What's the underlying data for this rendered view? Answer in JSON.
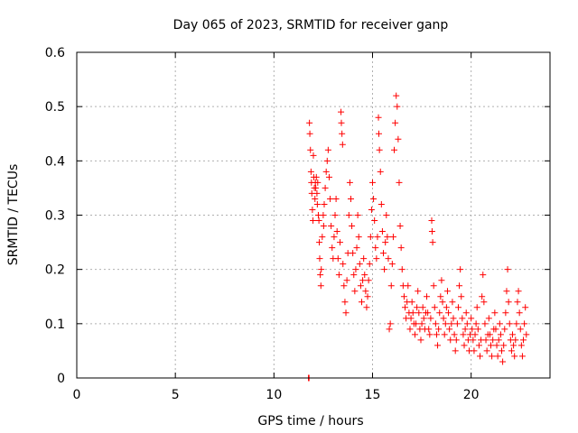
{
  "chart_data": {
    "type": "scatter",
    "title": "Day 065 of 2023, SRMTID for receiver ganp",
    "xlabel": "GPS time / hours",
    "ylabel": "SRMTID / TECUs",
    "xlim": [
      0,
      24
    ],
    "ylim": [
      0,
      0.6
    ],
    "xticks": [
      0,
      5,
      10,
      15,
      20
    ],
    "yticks": [
      0,
      0.1,
      0.2,
      0.3,
      0.4,
      0.5,
      0.6
    ],
    "grid": true,
    "marker": "+",
    "series": [
      {
        "name": "SRMTID",
        "color": "#ff0000",
        "points": [
          [
            11.75,
            0.0
          ],
          [
            11.78,
            0.0
          ],
          [
            11.8,
            0.47
          ],
          [
            11.82,
            0.45
          ],
          [
            11.85,
            0.42
          ],
          [
            11.88,
            0.38
          ],
          [
            11.9,
            0.36
          ],
          [
            11.92,
            0.34
          ],
          [
            11.95,
            0.31
          ],
          [
            11.98,
            0.29
          ],
          [
            12.0,
            0.41
          ],
          [
            12.02,
            0.37
          ],
          [
            12.05,
            0.35
          ],
          [
            12.08,
            0.33
          ],
          [
            12.1,
            0.36
          ],
          [
            12.12,
            0.35
          ],
          [
            12.15,
            0.37
          ],
          [
            12.18,
            0.34
          ],
          [
            12.2,
            0.32
          ],
          [
            12.22,
            0.36
          ],
          [
            12.25,
            0.3
          ],
          [
            12.28,
            0.29
          ],
          [
            12.3,
            0.25
          ],
          [
            12.32,
            0.22
          ],
          [
            12.35,
            0.19
          ],
          [
            12.38,
            0.17
          ],
          [
            12.4,
            0.2
          ],
          [
            12.45,
            0.26
          ],
          [
            12.5,
            0.3
          ],
          [
            12.52,
            0.28
          ],
          [
            12.55,
            0.32
          ],
          [
            12.6,
            0.35
          ],
          [
            12.65,
            0.38
          ],
          [
            12.7,
            0.4
          ],
          [
            12.75,
            0.42
          ],
          [
            12.8,
            0.37
          ],
          [
            12.85,
            0.33
          ],
          [
            12.9,
            0.28
          ],
          [
            12.95,
            0.24
          ],
          [
            13.0,
            0.22
          ],
          [
            13.05,
            0.26
          ],
          [
            13.1,
            0.3
          ],
          [
            13.15,
            0.33
          ],
          [
            13.2,
            0.27
          ],
          [
            13.25,
            0.22
          ],
          [
            13.3,
            0.19
          ],
          [
            13.35,
            0.25
          ],
          [
            13.4,
            0.49
          ],
          [
            13.42,
            0.47
          ],
          [
            13.45,
            0.45
          ],
          [
            13.48,
            0.43
          ],
          [
            13.5,
            0.21
          ],
          [
            13.55,
            0.17
          ],
          [
            13.6,
            0.14
          ],
          [
            13.65,
            0.12
          ],
          [
            13.7,
            0.18
          ],
          [
            13.75,
            0.23
          ],
          [
            13.8,
            0.3
          ],
          [
            13.85,
            0.36
          ],
          [
            13.9,
            0.33
          ],
          [
            13.95,
            0.28
          ],
          [
            14.0,
            0.23
          ],
          [
            14.05,
            0.19
          ],
          [
            14.1,
            0.16
          ],
          [
            14.15,
            0.2
          ],
          [
            14.2,
            0.24
          ],
          [
            14.25,
            0.3
          ],
          [
            14.3,
            0.26
          ],
          [
            14.35,
            0.21
          ],
          [
            14.4,
            0.17
          ],
          [
            14.45,
            0.14
          ],
          [
            14.5,
            0.18
          ],
          [
            14.55,
            0.22
          ],
          [
            14.6,
            0.19
          ],
          [
            14.65,
            0.16
          ],
          [
            14.7,
            0.13
          ],
          [
            14.75,
            0.15
          ],
          [
            14.8,
            0.18
          ],
          [
            14.85,
            0.21
          ],
          [
            14.9,
            0.26
          ],
          [
            14.95,
            0.31
          ],
          [
            15.0,
            0.36
          ],
          [
            15.05,
            0.33
          ],
          [
            15.1,
            0.29
          ],
          [
            15.15,
            0.24
          ],
          [
            15.2,
            0.22
          ],
          [
            15.25,
            0.26
          ],
          [
            15.3,
            0.48
          ],
          [
            15.32,
            0.45
          ],
          [
            15.35,
            0.42
          ],
          [
            15.4,
            0.38
          ],
          [
            15.45,
            0.32
          ],
          [
            15.5,
            0.27
          ],
          [
            15.55,
            0.23
          ],
          [
            15.6,
            0.2
          ],
          [
            15.65,
            0.25
          ],
          [
            15.7,
            0.3
          ],
          [
            15.75,
            0.26
          ],
          [
            15.8,
            0.22
          ],
          [
            15.85,
            0.09
          ],
          [
            15.9,
            0.1
          ],
          [
            15.95,
            0.17
          ],
          [
            16.0,
            0.21
          ],
          [
            16.05,
            0.26
          ],
          [
            16.1,
            0.42
          ],
          [
            16.15,
            0.47
          ],
          [
            16.2,
            0.52
          ],
          [
            16.25,
            0.5
          ],
          [
            16.3,
            0.44
          ],
          [
            16.35,
            0.36
          ],
          [
            16.4,
            0.28
          ],
          [
            16.45,
            0.24
          ],
          [
            16.5,
            0.2
          ],
          [
            16.55,
            0.17
          ],
          [
            16.6,
            0.15
          ],
          [
            16.65,
            0.13
          ],
          [
            16.7,
            0.11
          ],
          [
            16.75,
            0.14
          ],
          [
            16.8,
            0.17
          ],
          [
            16.85,
            0.12
          ],
          [
            16.9,
            0.09
          ],
          [
            16.95,
            0.11
          ],
          [
            17.0,
            0.14
          ],
          [
            17.05,
            0.12
          ],
          [
            17.1,
            0.1
          ],
          [
            17.15,
            0.08
          ],
          [
            17.2,
            0.1
          ],
          [
            17.25,
            0.13
          ],
          [
            17.3,
            0.16
          ],
          [
            17.35,
            0.12
          ],
          [
            17.4,
            0.09
          ],
          [
            17.45,
            0.07
          ],
          [
            17.5,
            0.1
          ],
          [
            17.55,
            0.13
          ],
          [
            17.6,
            0.11
          ],
          [
            17.65,
            0.09
          ],
          [
            17.7,
            0.12
          ],
          [
            17.75,
            0.15
          ],
          [
            17.8,
            0.12
          ],
          [
            17.85,
            0.09
          ],
          [
            17.9,
            0.08
          ],
          [
            17.95,
            0.11
          ],
          [
            18.0,
            0.29
          ],
          [
            18.02,
            0.27
          ],
          [
            18.05,
            0.25
          ],
          [
            18.1,
            0.17
          ],
          [
            18.15,
            0.13
          ],
          [
            18.2,
            0.1
          ],
          [
            18.25,
            0.08
          ],
          [
            18.3,
            0.06
          ],
          [
            18.35,
            0.09
          ],
          [
            18.4,
            0.12
          ],
          [
            18.45,
            0.15
          ],
          [
            18.5,
            0.18
          ],
          [
            18.55,
            0.14
          ],
          [
            18.6,
            0.11
          ],
          [
            18.65,
            0.08
          ],
          [
            18.7,
            0.1
          ],
          [
            18.75,
            0.13
          ],
          [
            18.8,
            0.16
          ],
          [
            18.85,
            0.12
          ],
          [
            18.9,
            0.09
          ],
          [
            18.95,
            0.07
          ],
          [
            19.0,
            0.1
          ],
          [
            19.05,
            0.14
          ],
          [
            19.1,
            0.11
          ],
          [
            19.15,
            0.08
          ],
          [
            19.2,
            0.05
          ],
          [
            19.25,
            0.07
          ],
          [
            19.3,
            0.1
          ],
          [
            19.35,
            0.13
          ],
          [
            19.4,
            0.17
          ],
          [
            19.45,
            0.2
          ],
          [
            19.5,
            0.15
          ],
          [
            19.55,
            0.11
          ],
          [
            19.6,
            0.08
          ],
          [
            19.65,
            0.06
          ],
          [
            19.7,
            0.09
          ],
          [
            19.75,
            0.12
          ],
          [
            19.8,
            0.1
          ],
          [
            19.85,
            0.07
          ],
          [
            19.9,
            0.05
          ],
          [
            19.95,
            0.08
          ],
          [
            20.0,
            0.11
          ],
          [
            20.05,
            0.09
          ],
          [
            20.1,
            0.07
          ],
          [
            20.15,
            0.05
          ],
          [
            20.2,
            0.08
          ],
          [
            20.25,
            0.1
          ],
          [
            20.3,
            0.13
          ],
          [
            20.35,
            0.09
          ],
          [
            20.4,
            0.06
          ],
          [
            20.45,
            0.04
          ],
          [
            20.5,
            0.07
          ],
          [
            20.55,
            0.15
          ],
          [
            20.6,
            0.19
          ],
          [
            20.65,
            0.14
          ],
          [
            20.7,
            0.1
          ],
          [
            20.75,
            0.07
          ],
          [
            20.8,
            0.05
          ],
          [
            20.85,
            0.08
          ],
          [
            20.9,
            0.11
          ],
          [
            20.95,
            0.08
          ],
          [
            21.0,
            0.06
          ],
          [
            21.05,
            0.04
          ],
          [
            21.1,
            0.07
          ],
          [
            21.15,
            0.09
          ],
          [
            21.2,
            0.12
          ],
          [
            21.25,
            0.09
          ],
          [
            21.3,
            0.06
          ],
          [
            21.35,
            0.04
          ],
          [
            21.4,
            0.07
          ],
          [
            21.45,
            0.1
          ],
          [
            21.5,
            0.08
          ],
          [
            21.55,
            0.05
          ],
          [
            21.6,
            0.03
          ],
          [
            21.65,
            0.06
          ],
          [
            21.7,
            0.09
          ],
          [
            21.75,
            0.12
          ],
          [
            21.8,
            0.16
          ],
          [
            21.85,
            0.2
          ],
          [
            21.9,
            0.14
          ],
          [
            21.95,
            0.1
          ],
          [
            22.0,
            0.07
          ],
          [
            22.05,
            0.05
          ],
          [
            22.1,
            0.08
          ],
          [
            22.15,
            0.06
          ],
          [
            22.2,
            0.04
          ],
          [
            22.25,
            0.07
          ],
          [
            22.3,
            0.1
          ],
          [
            22.35,
            0.14
          ],
          [
            22.4,
            0.16
          ],
          [
            22.45,
            0.12
          ],
          [
            22.5,
            0.09
          ],
          [
            22.55,
            0.06
          ],
          [
            22.6,
            0.04
          ],
          [
            22.65,
            0.07
          ],
          [
            22.7,
            0.1
          ],
          [
            22.75,
            0.13
          ],
          [
            22.8,
            0.08
          ]
        ]
      }
    ]
  }
}
